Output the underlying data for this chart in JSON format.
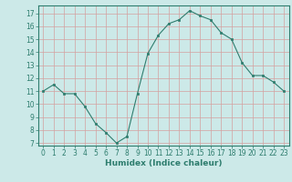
{
  "x": [
    0,
    1,
    2,
    3,
    4,
    5,
    6,
    7,
    8,
    9,
    10,
    11,
    12,
    13,
    14,
    15,
    16,
    17,
    18,
    19,
    20,
    21,
    22,
    23
  ],
  "y": [
    11.0,
    11.5,
    10.8,
    10.8,
    9.8,
    8.5,
    7.8,
    7.0,
    7.5,
    10.8,
    13.9,
    15.3,
    16.2,
    16.5,
    17.2,
    16.8,
    16.5,
    15.5,
    15.0,
    13.2,
    12.2,
    12.2,
    11.7,
    11.0
  ],
  "xlabel": "Humidex (Indice chaleur)",
  "line_color": "#2e7d6e",
  "bg_color": "#cce9e8",
  "grid_color": "#d4a0a0",
  "ylim": [
    6.8,
    17.6
  ],
  "xlim": [
    -0.5,
    23.5
  ],
  "yticks": [
    7,
    8,
    9,
    10,
    11,
    12,
    13,
    14,
    15,
    16,
    17
  ],
  "xticks": [
    0,
    1,
    2,
    3,
    4,
    5,
    6,
    7,
    8,
    9,
    10,
    11,
    12,
    13,
    14,
    15,
    16,
    17,
    18,
    19,
    20,
    21,
    22,
    23
  ],
  "tick_fontsize": 5.5,
  "xlabel_fontsize": 6.5,
  "tick_color": "#2e7d6e",
  "spine_color": "#2e7d6e"
}
